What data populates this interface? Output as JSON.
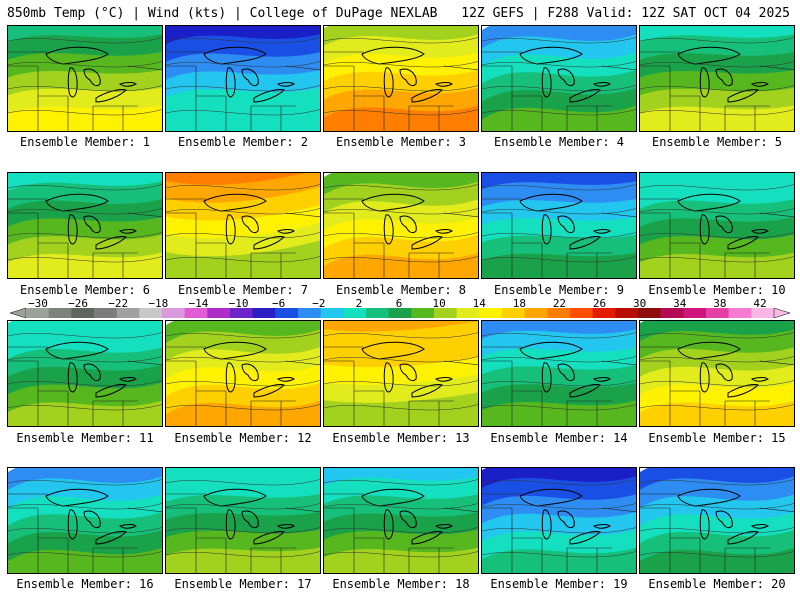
{
  "header": {
    "left": "850mb Temp (°C) | Wind (kts) | College of DuPage NEXLAB",
    "right": "12Z GEFS | F288 Valid: 12Z SAT OCT 04 2025"
  },
  "members": [
    {
      "label": "Ensemble Member: 1",
      "warmth": 0.55,
      "gradient": "south-warm"
    },
    {
      "label": "Ensemble Member: 2",
      "warmth": 0.15,
      "gradient": "north-cold"
    },
    {
      "label": "Ensemble Member: 3",
      "warmth": 0.75,
      "gradient": "south-warm"
    },
    {
      "label": "Ensemble Member: 4",
      "warmth": 0.3,
      "gradient": "north-cold"
    },
    {
      "label": "Ensemble Member: 5",
      "warmth": 0.5,
      "gradient": "south-warm"
    },
    {
      "label": "Ensemble Member: 6",
      "warmth": 0.5,
      "gradient": "south-warm"
    },
    {
      "label": "Ensemble Member: 7",
      "warmth": 0.8,
      "gradient": "west-warm"
    },
    {
      "label": "Ensemble Member: 8",
      "warmth": 0.72,
      "gradient": "south-warm"
    },
    {
      "label": "Ensemble Member: 9",
      "warmth": 0.25,
      "gradient": "north-cold"
    },
    {
      "label": "Ensemble Member: 10",
      "warmth": 0.45,
      "gradient": "south-warm"
    },
    {
      "label": "Ensemble Member: 11",
      "warmth": 0.45,
      "gradient": "south-warm"
    },
    {
      "label": "Ensemble Member: 12",
      "warmth": 0.7,
      "gradient": "south-warm"
    },
    {
      "label": "Ensemble Member: 13",
      "warmth": 0.78,
      "gradient": "west-warm"
    },
    {
      "label": "Ensemble Member: 14",
      "warmth": 0.3,
      "gradient": "north-cold"
    },
    {
      "label": "Ensemble Member: 15",
      "warmth": 0.65,
      "gradient": "south-warm"
    },
    {
      "label": "Ensemble Member: 16",
      "warmth": 0.3,
      "gradient": "north-cold"
    },
    {
      "label": "Ensemble Member: 17",
      "warmth": 0.45,
      "gradient": "south-warm"
    },
    {
      "label": "Ensemble Member: 18",
      "warmth": 0.4,
      "gradient": "south-warm"
    },
    {
      "label": "Ensemble Member: 19",
      "warmth": 0.2,
      "gradient": "north-cold"
    },
    {
      "label": "Ensemble Member: 20",
      "warmth": 0.28,
      "gradient": "north-cold"
    }
  ],
  "colorbar": {
    "labels": [
      "−30",
      "−26",
      "−22",
      "−18",
      "−14",
      "−10",
      "−6",
      "−2",
      "2",
      "6",
      "10",
      "14",
      "18",
      "22",
      "26",
      "30",
      "34",
      "38",
      "42"
    ],
    "colors": [
      "#9aa29a",
      "#7b847b",
      "#5e665e",
      "#7c7c7c",
      "#a0a0a0",
      "#c8c8c8",
      "#d89adb",
      "#e25ad6",
      "#b02cc8",
      "#6d24c9",
      "#2a1fc3",
      "#1a4fe6",
      "#2d8df2",
      "#22c6ee",
      "#14e0c0",
      "#16c07a",
      "#1aa24a",
      "#56b81e",
      "#a2d21e",
      "#e2ec1c",
      "#fff200",
      "#ffd000",
      "#ffa600",
      "#ff7e00",
      "#ff4e00",
      "#e31c00",
      "#b80e00",
      "#8f0c0c",
      "#b40a55",
      "#d0147d",
      "#e640a8",
      "#f57ad0",
      "#fab8e8"
    ]
  }
}
